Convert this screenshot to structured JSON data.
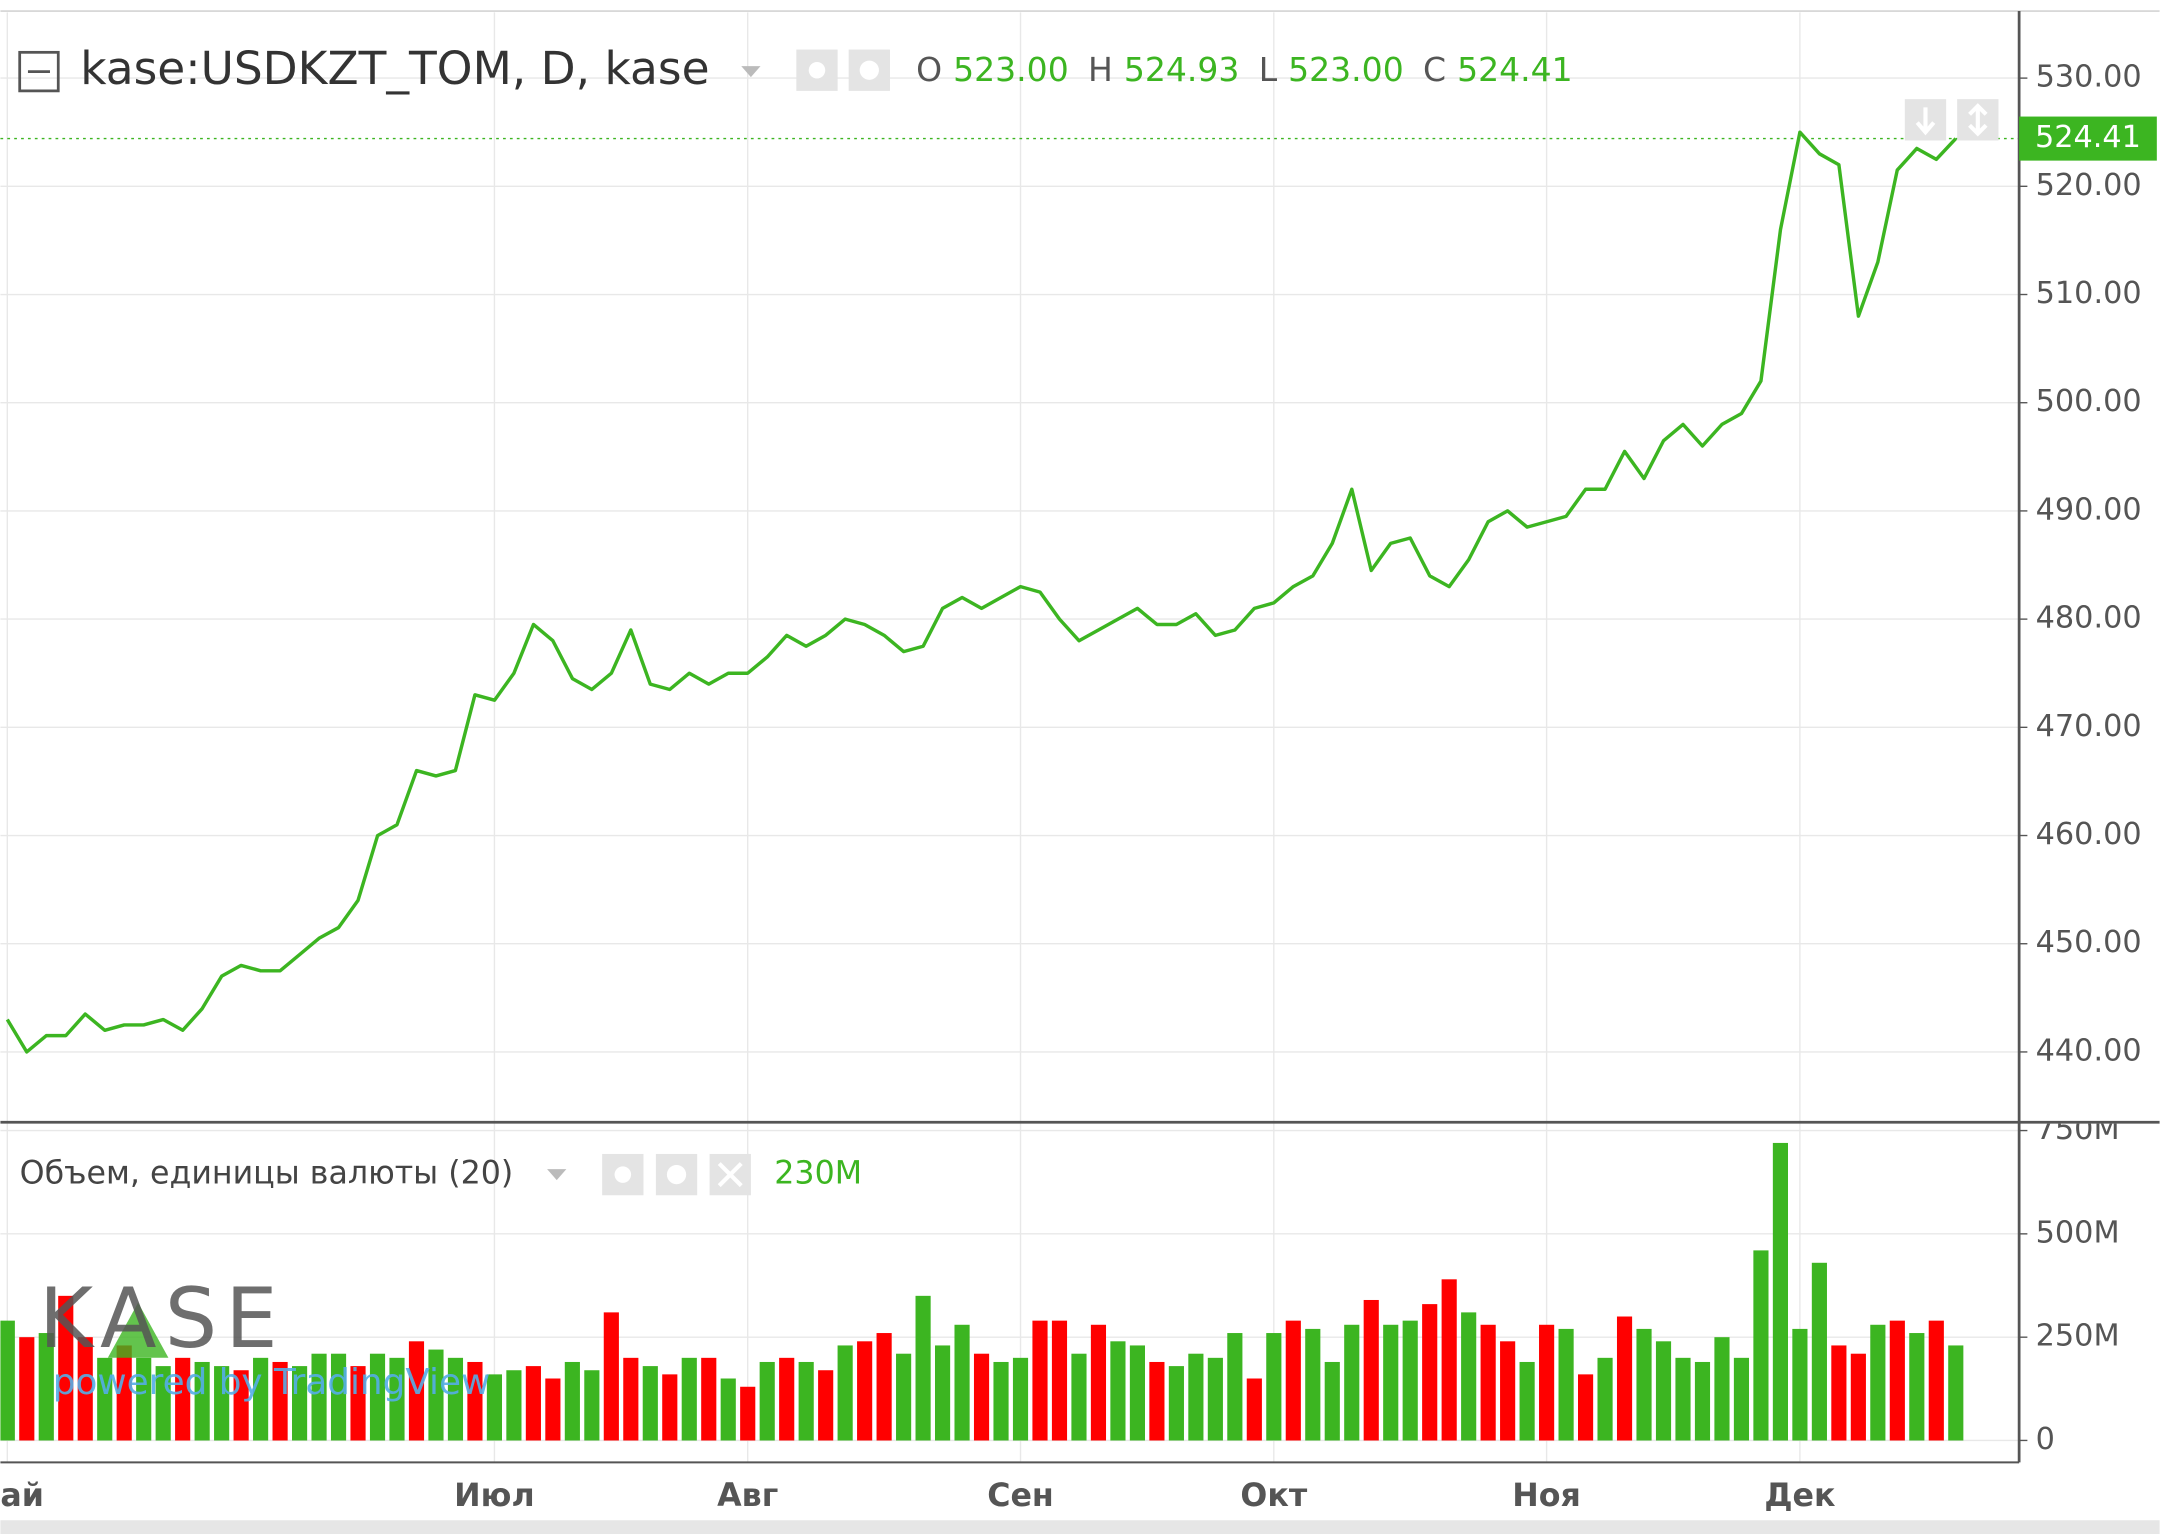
{
  "chart_data": [
    {
      "type": "line",
      "title": "kase:USDKZT_TOM, D, kase",
      "ohlc": [
        {
          "label": "O",
          "value": {
            "value": 523,
            "label": "523.00"
          }
        },
        {
          "label": "H",
          "value": {
            "value": 524.93,
            "label": "524.93"
          }
        },
        {
          "label": "L",
          "value": {
            "value": 523,
            "label": "523.00"
          }
        },
        {
          "label": "C",
          "value": {
            "value": 524.41,
            "label": "524.41"
          }
        }
      ],
      "categories": [
        "ай",
        null,
        null,
        null,
        null,
        null,
        null,
        null,
        null,
        null,
        null,
        null,
        null,
        null,
        null,
        null,
        null,
        null,
        null,
        null,
        null,
        null,
        null,
        null,
        null,
        "Июл",
        null,
        null,
        null,
        null,
        null,
        null,
        null,
        null,
        null,
        null,
        null,
        null,
        "Авг",
        null,
        null,
        null,
        null,
        null,
        null,
        null,
        null,
        null,
        null,
        null,
        null,
        null,
        "Сен",
        null,
        null,
        null,
        null,
        null,
        null,
        null,
        null,
        null,
        null,
        null,
        null,
        "Окт",
        null,
        null,
        null,
        null,
        null,
        null,
        null,
        null,
        null,
        null,
        null,
        null,
        null,
        "Ноя",
        null,
        null,
        null,
        null,
        null,
        null,
        null,
        null,
        null,
        null,
        null,
        null,
        "Дек",
        null,
        null,
        null,
        null,
        null,
        null,
        null,
        null
      ],
      "values": [
        443,
        440,
        441.5,
        441.5,
        443.5,
        442,
        442.5,
        442.5,
        443,
        442,
        444,
        447,
        448,
        447.5,
        447.5,
        449,
        450.5,
        451.5,
        454,
        460,
        461,
        466,
        465.5,
        466,
        473,
        472.5,
        475,
        479.5,
        478,
        474.5,
        473.5,
        475,
        479,
        474,
        473.5,
        475,
        474,
        475,
        475,
        476.5,
        478.5,
        477.5,
        478.5,
        480,
        479.5,
        478.5,
        477,
        477.5,
        481,
        482,
        481,
        482,
        483,
        482.5,
        480,
        478,
        479,
        480,
        481,
        479.5,
        479.5,
        480.5,
        478.5,
        479,
        481,
        481.5,
        483,
        484,
        487,
        492,
        484.5,
        487,
        487.5,
        484,
        483,
        485.5,
        489,
        490,
        488.5,
        489,
        489.5,
        492,
        492,
        495.5,
        493,
        496.5,
        498,
        496,
        498,
        499,
        502,
        516,
        525,
        523,
        522,
        508,
        513,
        521.5,
        523.5,
        522.5,
        524.41
      ],
      "color": "#3cb521",
      "ylim": [
        433.5,
        536.2
      ],
      "yticks": [
        {
          "value": 440,
          "label": "440.00"
        },
        {
          "value": 450,
          "label": "450.00"
        },
        {
          "value": 460,
          "label": "460.00"
        },
        {
          "value": 470,
          "label": "470.00"
        },
        {
          "value": 480,
          "label": "480.00"
        },
        {
          "value": 490,
          "label": "490.00"
        },
        {
          "value": 500,
          "label": "500.00"
        },
        {
          "value": 510,
          "label": "510.00"
        },
        {
          "value": 520,
          "label": "520.00"
        },
        {
          "value": 530,
          "label": "530.00"
        }
      ],
      "grid": true
    },
    {
      "type": "bar",
      "title": "Объем, единицы валюты (20)",
      "last_value": {
        "value": 230000000,
        "label": "230M"
      },
      "values": [
        290000000,
        250000000,
        260000000,
        350000000,
        250000000,
        200000000,
        230000000,
        200000000,
        180000000,
        200000000,
        190000000,
        180000000,
        170000000,
        200000000,
        190000000,
        180000000,
        210000000,
        210000000,
        180000000,
        210000000,
        200000000,
        240000000,
        220000000,
        200000000,
        190000000,
        160000000,
        170000000,
        180000000,
        150000000,
        190000000,
        170000000,
        310000000,
        200000000,
        180000000,
        160000000,
        200000000,
        200000000,
        150000000,
        130000000,
        190000000,
        200000000,
        190000000,
        170000000,
        230000000,
        240000000,
        260000000,
        210000000,
        350000000,
        230000000,
        280000000,
        210000000,
        190000000,
        200000000,
        290000000,
        290000000,
        210000000,
        280000000,
        240000000,
        230000000,
        190000000,
        180000000,
        210000000,
        200000000,
        260000000,
        150000000,
        260000000,
        290000000,
        270000000,
        190000000,
        280000000,
        340000000,
        280000000,
        290000000,
        330000000,
        390000000,
        310000000,
        280000000,
        240000000,
        190000000,
        280000000,
        270000000,
        160000000,
        200000000,
        300000000,
        270000000,
        240000000,
        200000000,
        190000000,
        250000000,
        200000000,
        460000000,
        720000000,
        270000000,
        430000000,
        230000000,
        210000000,
        280000000,
        290000000,
        260000000,
        290000000,
        230000000
      ],
      "colors": [
        "#3cb521",
        "#ff0000",
        "#3cb521",
        "#ff0000",
        "#ff0000",
        "#3cb521",
        "#ff0000",
        "#3cb521",
        "#3cb521",
        "#ff0000",
        "#3cb521",
        "#3cb521",
        "#ff0000",
        "#3cb521",
        "#ff0000",
        "#3cb521",
        "#3cb521",
        "#3cb521",
        "#ff0000",
        "#3cb521",
        "#3cb521",
        "#ff0000",
        "#3cb521",
        "#3cb521",
        "#ff0000",
        "#3cb521",
        "#3cb521",
        "#ff0000",
        "#ff0000",
        "#3cb521",
        "#3cb521",
        "#ff0000",
        "#ff0000",
        "#3cb521",
        "#ff0000",
        "#3cb521",
        "#ff0000",
        "#3cb521",
        "#ff0000",
        "#3cb521",
        "#ff0000",
        "#3cb521",
        "#ff0000",
        "#3cb521",
        "#ff0000",
        "#ff0000",
        "#3cb521",
        "#3cb521",
        "#3cb521",
        "#3cb521",
        "#ff0000",
        "#3cb521",
        "#3cb521",
        "#ff0000",
        "#ff0000",
        "#3cb521",
        "#ff0000",
        "#3cb521",
        "#3cb521",
        "#ff0000",
        "#3cb521",
        "#3cb521",
        "#3cb521",
        "#3cb521",
        "#ff0000",
        "#3cb521",
        "#ff0000",
        "#3cb521",
        "#3cb521",
        "#3cb521",
        "#ff0000",
        "#3cb521",
        "#3cb521",
        "#ff0000",
        "#ff0000",
        "#3cb521",
        "#ff0000",
        "#ff0000",
        "#3cb521",
        "#ff0000",
        "#3cb521",
        "#ff0000",
        "#3cb521",
        "#ff0000",
        "#3cb521",
        "#3cb521",
        "#3cb521",
        "#3cb521",
        "#3cb521",
        "#3cb521",
        "#3cb521",
        "#3cb521",
        "#3cb521",
        "#3cb521",
        "#ff0000",
        "#ff0000",
        "#3cb521",
        "#ff0000",
        "#3cb521",
        "#ff0000",
        "#3cb521"
      ],
      "ylim": [
        -53000000,
        770000000
      ],
      "yticks": [
        0,
        {
          "value": 250000000,
          "label": "250M"
        },
        {
          "value": 500000000,
          "label": "500M"
        },
        {
          "value": 750000000,
          "label": "750M"
        }
      ],
      "grid": true,
      "watermark_logo": "KASE",
      "watermark_text": "powered by TradingView"
    }
  ]
}
